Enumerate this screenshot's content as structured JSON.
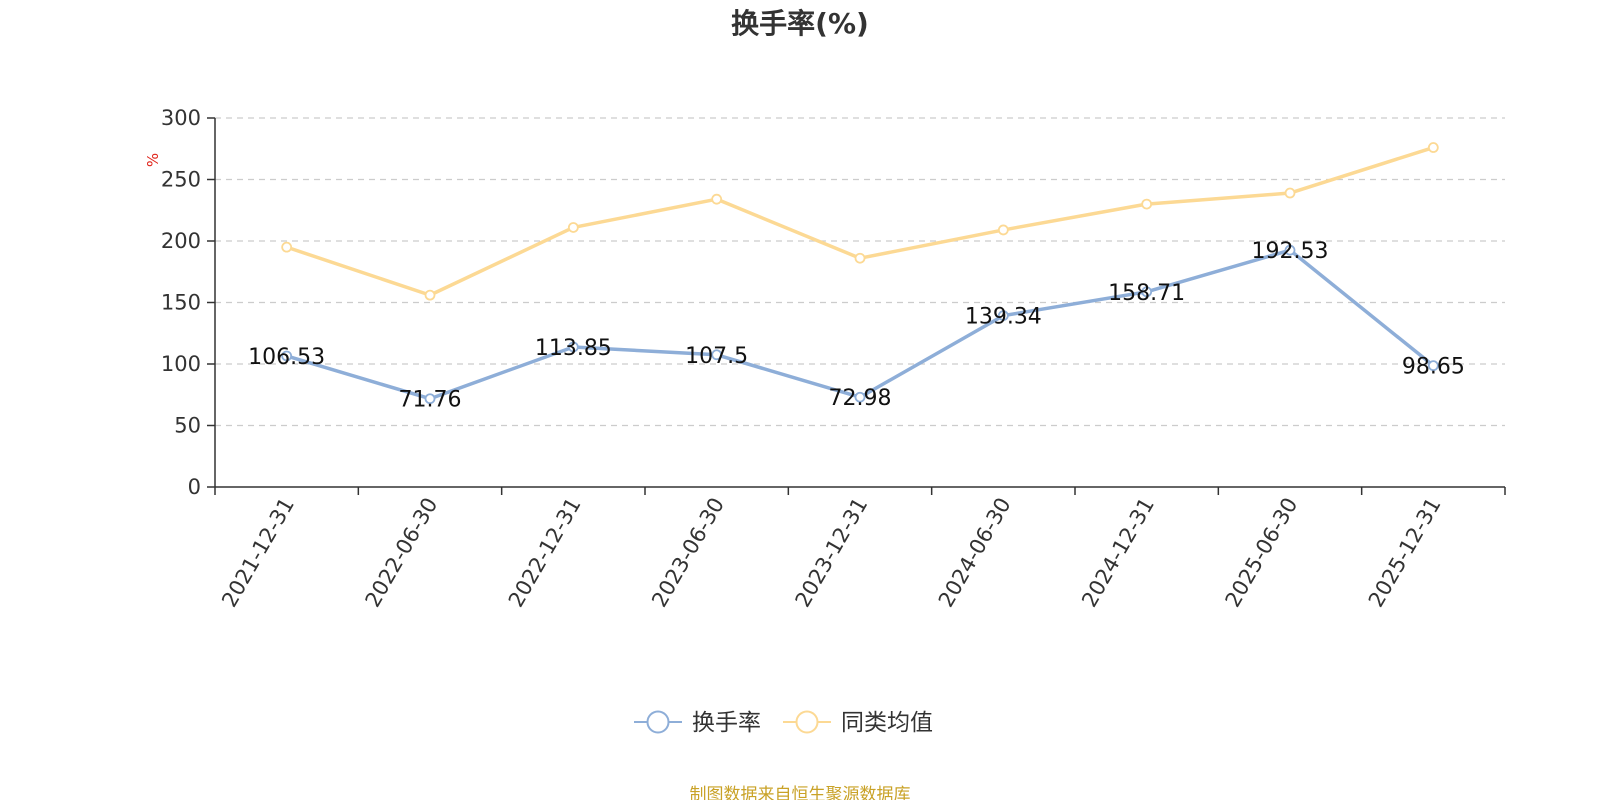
{
  "chart_data": {
    "type": "line",
    "title": "换手率(%)",
    "unit_label": "%",
    "categories": [
      "2021-12-31",
      "2022-06-30",
      "2022-12-31",
      "2023-06-30",
      "2023-12-31",
      "2024-06-30",
      "2024-12-31",
      "2025-06-30",
      "2025-12-31"
    ],
    "series": [
      {
        "name": "换手率",
        "color": "#8eaed8",
        "values": [
          106.53,
          71.76,
          113.85,
          107.5,
          72.98,
          139.34,
          158.71,
          192.53,
          98.65
        ],
        "data_labels": [
          "106.53",
          "71.76",
          "113.85",
          "107.5",
          "72.98",
          "139.34",
          "158.71",
          "192.53",
          "98.65"
        ]
      },
      {
        "name": "同类均值",
        "color": "#fcd994",
        "values": [
          195,
          156,
          211,
          234,
          186,
          209,
          230,
          239,
          276
        ]
      }
    ],
    "ylim": [
      0,
      300
    ],
    "yticks": [
      0,
      50,
      100,
      150,
      200,
      250,
      300
    ],
    "grid": true,
    "legend_position": "bottom-center"
  },
  "source": "制图数据来自恒生聚源数据库"
}
